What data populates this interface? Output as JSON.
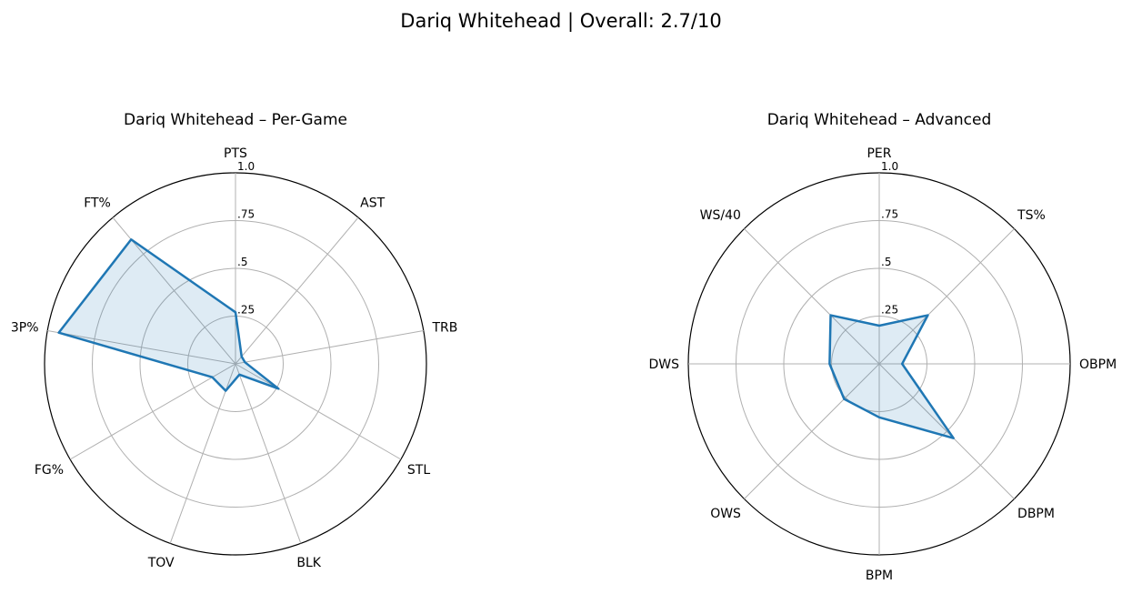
{
  "figure": {
    "title": "Dariq Whitehead | Overall: 2.7/10"
  },
  "colors": {
    "line": "#1f77b4",
    "fill": "#1f77b4",
    "grid": "#b0b0b0",
    "frame": "#000000"
  },
  "chart_data": [
    {
      "type": "radar",
      "title": "Dariq Whitehead – Per-Game",
      "rlim": [
        0,
        1
      ],
      "rticks": [
        0.25,
        0.5,
        0.75,
        1.0
      ],
      "rtick_labels": [
        ".25",
        ".5",
        ".75",
        "1.0"
      ],
      "grid": true,
      "categories": [
        "PTS",
        "AST",
        "TRB",
        "STL",
        "BLK",
        "TOV",
        "FG%",
        "3P%",
        "FT%"
      ],
      "values": [
        0.27,
        0.05,
        0.05,
        0.26,
        0.06,
        0.15,
        0.14,
        0.94,
        0.85
      ]
    },
    {
      "type": "radar",
      "title": "Dariq Whitehead – Advanced",
      "rlim": [
        0,
        1
      ],
      "rticks": [
        0.25,
        0.5,
        0.75,
        1.0
      ],
      "rtick_labels": [
        ".25",
        ".5",
        ".75",
        "1.0"
      ],
      "grid": true,
      "categories": [
        "PER",
        "TS%",
        "OBPM",
        "DBPM",
        "BPM",
        "OWS",
        "DWS",
        "WS/40"
      ],
      "values": [
        0.2,
        0.36,
        0.12,
        0.55,
        0.28,
        0.26,
        0.26,
        0.36
      ]
    }
  ]
}
